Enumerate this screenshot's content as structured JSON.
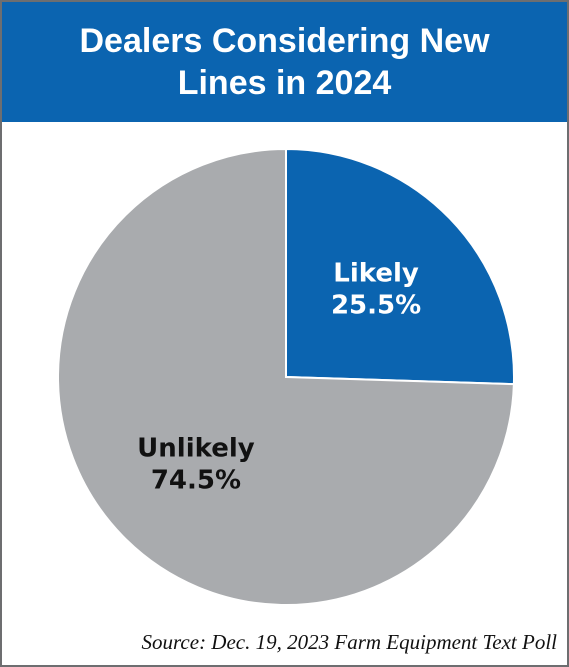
{
  "chart_data": {
    "type": "pie",
    "title": "Dealers Considering New Lines in 2024",
    "categories": [
      "Likely",
      "Unlikely"
    ],
    "values": [
      25.5,
      74.5
    ],
    "value_labels": [
      "25.5%",
      "74.5%"
    ],
    "colors": [
      "#0b64b0",
      "#a9abae"
    ],
    "label_colors": [
      "#ffffff",
      "#111111"
    ],
    "source": "Source: Dec. 19, 2023 Farm Equipment Text Poll"
  }
}
